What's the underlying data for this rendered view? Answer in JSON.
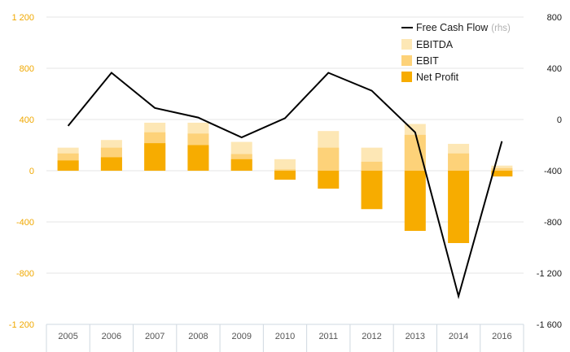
{
  "chart_data": {
    "type": "bar",
    "categories": [
      "2005",
      "2006",
      "2007",
      "2008",
      "2009",
      "2010",
      "2011",
      "2012",
      "2013",
      "2014",
      "2016"
    ],
    "series": [
      {
        "name": "EBITDA",
        "axis": "left",
        "kind": "bar",
        "color": "#fde7b5",
        "values": [
          180,
          240,
          375,
          375,
          225,
          90,
          310,
          180,
          365,
          210,
          40
        ]
      },
      {
        "name": "EBIT",
        "axis": "left",
        "kind": "bar",
        "color": "#fdd279",
        "values": [
          135,
          180,
          300,
          290,
          130,
          10,
          180,
          70,
          280,
          135,
          20
        ]
      },
      {
        "name": "Net Profit",
        "axis": "left",
        "kind": "bar",
        "color": "#f7ac00",
        "values": [
          80,
          105,
          215,
          200,
          90,
          -70,
          -140,
          -300,
          -470,
          -565,
          -45
        ]
      },
      {
        "name": "Free Cash Flow",
        "suffix": "(rhs)",
        "axis": "right",
        "kind": "line",
        "color": "#000000",
        "values": [
          -50,
          365,
          90,
          15,
          -140,
          10,
          365,
          225,
          -100,
          -1380,
          -170
        ]
      }
    ],
    "y_left": {
      "min": -1200,
      "max": 1200,
      "ticks": [
        "1 200",
        "800",
        "400",
        "0",
        "-400",
        "-800",
        "-1 200"
      ],
      "tick_values": [
        1200,
        800,
        400,
        0,
        -400,
        -800,
        -1200
      ],
      "color": "#f0a800"
    },
    "y_right": {
      "min": -1600,
      "max": 800,
      "ticks": [
        "800",
        "400",
        "0",
        "-400",
        "-800",
        "-1 200",
        "-1 600"
      ],
      "tick_values": [
        800,
        400,
        0,
        -400,
        -800,
        -1200,
        -1600
      ],
      "color": "#1a1a1a"
    },
    "grid": true,
    "legend_position": "top-right"
  }
}
